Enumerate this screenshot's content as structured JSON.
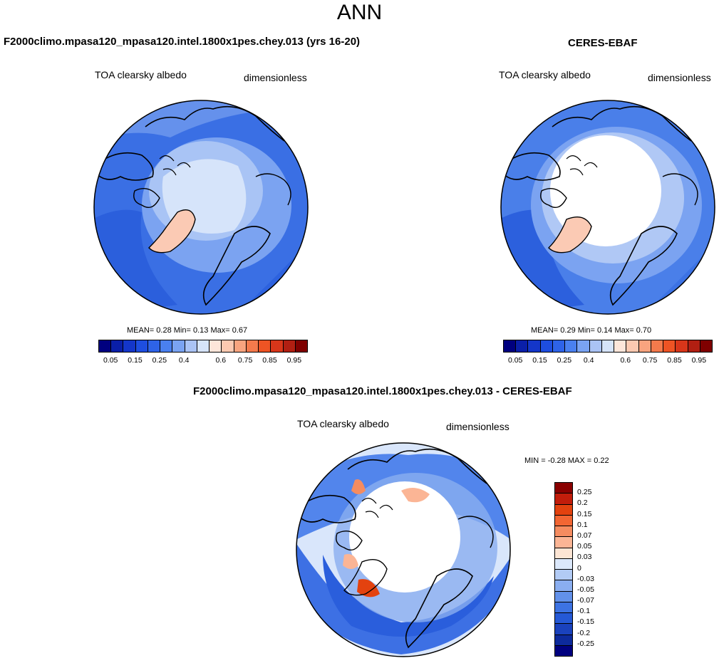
{
  "figure": {
    "title": "ANN",
    "panels": [
      {
        "name": "model",
        "title": "F2000climo.mpasa120_mpasa120.intel.1800x1pes.chey.013 (yrs 16-20)",
        "left_label": "TOA clearsky albedo",
        "right_label": "dimensionless",
        "stats": {
          "mean_label": "MEAN=",
          "mean": "0.28",
          "min_label": "Min=",
          "min": "0.13",
          "max_label": "Max=",
          "max": "0.67"
        }
      },
      {
        "name": "obs",
        "title": "CERES-EBAF",
        "left_label": "TOA clearsky albedo",
        "right_label": "dimensionless",
        "stats": {
          "mean_label": "MEAN=",
          "mean": "0.29",
          "min_label": "Min=",
          "min": "0.14",
          "max_label": "Max=",
          "max": "0.70"
        }
      },
      {
        "name": "diff",
        "title": "F2000climo.mpasa120_mpasa120.intel.1800x1pes.chey.013 - CERES-EBAF",
        "left_label": "TOA clearsky albedo",
        "right_label": "dimensionless",
        "stats": {
          "min_label": "MIN =",
          "min": "-0.28",
          "max_label": "MAX =",
          "max": "0.22"
        }
      }
    ]
  },
  "colorbars": {
    "sequential": {
      "colors": [
        "#00007f",
        "#0a1fa8",
        "#1436c9",
        "#1e4ee0",
        "#2e63e8",
        "#4a80ef",
        "#7aa3f2",
        "#aac3f5",
        "#d6e4fa",
        "#fde6da",
        "#fcc9b1",
        "#f8a47f",
        "#f47a4c",
        "#ee5424",
        "#d8361a",
        "#b11f12",
        "#7f0000"
      ],
      "labels": [
        "0.05",
        "0.15",
        "0.25",
        "0.4",
        "0.6",
        "0.75",
        "0.85",
        "0.95"
      ]
    },
    "diverging": {
      "colors": [
        "#8a0000",
        "#c21d0b",
        "#e3420f",
        "#f26633",
        "#f58c60",
        "#fbb595",
        "#fde5d4",
        "#dbe8fb",
        "#b2cbf5",
        "#8aaef0",
        "#6291ea",
        "#3d73e3",
        "#2559d6",
        "#1a42bd",
        "#0d2a9c",
        "#00007f"
      ],
      "labels": [
        "0.25",
        "0.2",
        "0.15",
        "0.1",
        "0.07",
        "0.05",
        "0.03",
        "0",
        "-0.03",
        "-0.05",
        "-0.07",
        "-0.1",
        "-0.15",
        "-0.2",
        "-0.25"
      ]
    }
  }
}
